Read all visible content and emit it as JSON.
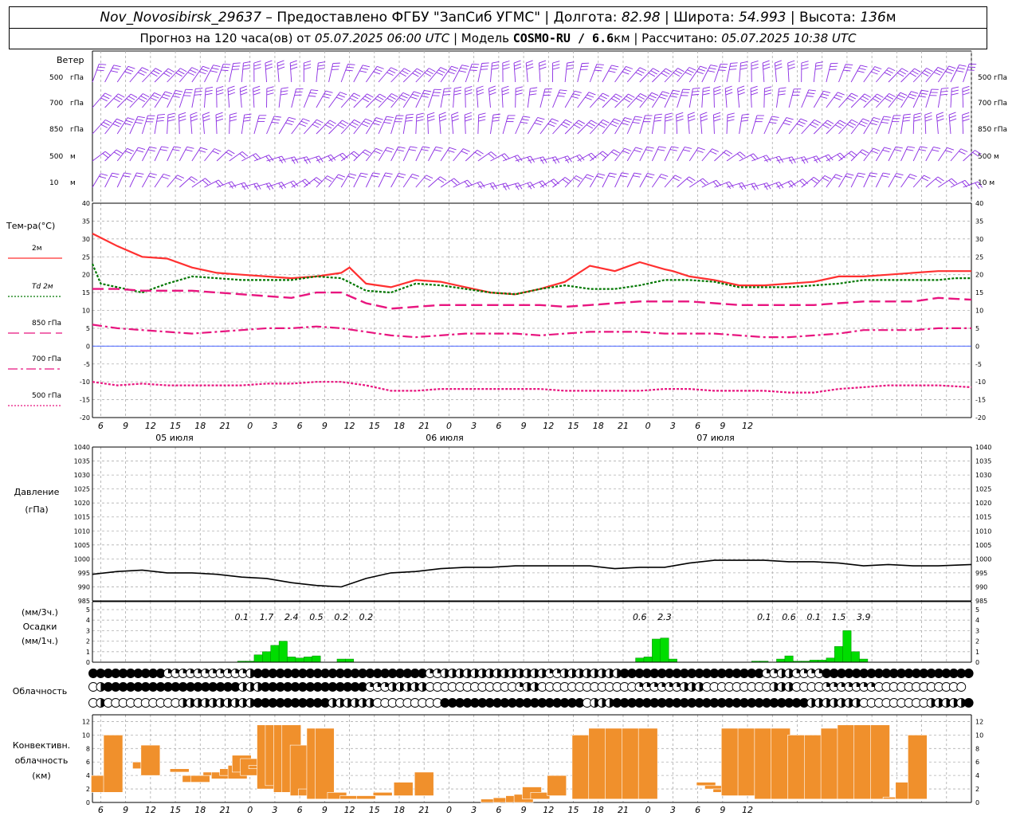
{
  "header": {
    "station": "Nov_Novosibirsk_29637",
    "dash": "–",
    "provider": "Предоставлено ФГБУ \"ЗапСиб УГМС\"",
    "sep": "|",
    "lon_label": "Долгота:",
    "lon": "82.98",
    "lat_label": "Широта:",
    "lat": "54.993",
    "alt_label": "Высота:",
    "alt": "136",
    "alt_unit": "м"
  },
  "subheader": {
    "forecast_label": "Прогноз на 120 часа(ов) от",
    "forecast_time": "05.07.2025 06:00 UTC",
    "model_label": "| Модель",
    "model": "COSMO-RU / 6.6",
    "model_unit": "км",
    "calc_label": "| Рассчитано:",
    "calc_time": "05.07.2025 10:38 UTC"
  },
  "x_ticks": [
    "6",
    "9",
    "12",
    "15",
    "18",
    "21",
    "0",
    "3",
    "6",
    "9",
    "12",
    "15",
    "18",
    "21",
    "0",
    "3",
    "6",
    "9",
    "12",
    "15",
    "18",
    "21",
    "0",
    "3",
    "6",
    "9",
    "12"
  ],
  "date_labels": [
    "05 июля",
    "06 июля",
    "07 июля"
  ],
  "wind_panel": {
    "title": "Ветер",
    "levels": [
      "500 гПа",
      "700 гПа",
      "850 гПа",
      "500 м",
      "10 м"
    ],
    "barb_color": "#8a2be2"
  },
  "temp_panel": {
    "title": "Тем-ра(°C)",
    "legend": [
      {
        "label": "2м",
        "color": "#ff3030",
        "style": "solid"
      },
      {
        "label": "Td  2м",
        "color": "#007700",
        "style": "dotted"
      },
      {
        "label": "850 гПа",
        "color": "#e8157f",
        "style": "dashed"
      },
      {
        "label": "700 гПа",
        "color": "#e8157f",
        "style": "dashdot"
      },
      {
        "label": "500 гПа",
        "color": "#e8157f",
        "style": "dotted"
      }
    ],
    "y_ticks": [
      "40",
      "35",
      "30",
      "25",
      "20",
      "15",
      "10",
      "5",
      "0",
      "-5",
      "-10",
      "-15",
      "-20"
    ]
  },
  "pressure_panel": {
    "title": "Давление",
    "unit": "(гПа)",
    "y_ticks": [
      "1040",
      "1035",
      "1030",
      "1025",
      "1020",
      "1015",
      "1010",
      "1005",
      "1000",
      "995",
      "990",
      "985"
    ]
  },
  "precip_panel": {
    "unit_3h": "(мм/3ч.)",
    "title": "Осадки",
    "unit_1h": "(мм/1ч.)",
    "y_ticks": [
      "5",
      "4",
      "3",
      "2",
      "1",
      "0"
    ],
    "totals": [
      {
        "text": "0.1",
        "hour": 18
      },
      {
        "text": "1.7",
        "hour": 21
      },
      {
        "text": "2.4",
        "hour": 24
      },
      {
        "text": "0.5",
        "hour": 27
      },
      {
        "text": "0.2",
        "hour": 30
      },
      {
        "text": "0.2",
        "hour": 33
      },
      {
        "text": "0.6",
        "hour": 66
      },
      {
        "text": "2.3",
        "hour": 69
      },
      {
        "text": "0.1",
        "hour": 81
      },
      {
        "text": "0.6",
        "hour": 84
      },
      {
        "text": "0.1",
        "hour": 87
      },
      {
        "text": "1.5",
        "hour": 90
      },
      {
        "text": "3.9",
        "hour": 93
      }
    ]
  },
  "cloud_panel": {
    "title": "Облачность"
  },
  "conv_panel": {
    "title_1": "Конвективн.",
    "title_2": "облачность",
    "unit": "(км)",
    "y_ticks": [
      "12",
      "10",
      "8",
      "6",
      "4",
      "2",
      "0"
    ]
  },
  "chart_data": [
    {
      "type": "line",
      "title": "Тем-ра(°C)",
      "x_unit": "hours from 05.07.2025 06:00 UTC",
      "ylim": [
        -20,
        40
      ],
      "series": [
        {
          "name": "2м",
          "x": [
            0,
            3,
            6,
            9,
            12,
            15,
            18,
            21,
            24,
            27,
            30,
            31,
            33,
            36,
            39,
            42,
            45,
            48,
            51,
            54,
            57,
            60,
            63,
            66,
            69,
            70,
            72,
            75,
            78,
            81,
            84,
            87,
            90,
            93,
            96,
            99,
            102,
            104,
            106
          ],
          "values": [
            31.5,
            28,
            25,
            24.5,
            22,
            20.5,
            20,
            19.5,
            19,
            19.5,
            20.5,
            22,
            17.5,
            16.5,
            18.5,
            18,
            16.5,
            15,
            14.5,
            16,
            18,
            22.5,
            21,
            23.5,
            21.5,
            21,
            19.5,
            18.5,
            17,
            17,
            17.5,
            18,
            19.5,
            19.5,
            20,
            20.5,
            21,
            21,
            21
          ]
        },
        {
          "name": "Td  2м",
          "x": [
            0,
            1,
            3,
            6,
            9,
            12,
            15,
            18,
            21,
            24,
            27,
            30,
            33,
            36,
            39,
            42,
            45,
            48,
            51,
            54,
            57,
            60,
            63,
            66,
            69,
            72,
            75,
            78,
            81,
            84,
            87,
            90,
            93,
            96,
            99,
            102,
            104,
            106
          ],
          "values": [
            23,
            17.5,
            16.5,
            15,
            17.5,
            19.5,
            19,
            18.5,
            18.5,
            18.5,
            19.5,
            19,
            15.5,
            15,
            17.5,
            17,
            16,
            15,
            14.5,
            16,
            17,
            16,
            16,
            17,
            18.5,
            18.5,
            18,
            16.5,
            16.5,
            16.5,
            17,
            17.5,
            18.5,
            18.5,
            18.5,
            18.5,
            19,
            19
          ]
        },
        {
          "name": "850 гПа",
          "x": [
            0,
            3,
            6,
            9,
            12,
            15,
            18,
            21,
            24,
            27,
            30,
            33,
            36,
            39,
            42,
            45,
            48,
            51,
            54,
            57,
            60,
            63,
            66,
            69,
            72,
            75,
            78,
            81,
            84,
            87,
            90,
            93,
            96,
            99,
            102,
            106
          ],
          "values": [
            16,
            16,
            15.5,
            15.5,
            15.5,
            15,
            14.5,
            14,
            13.5,
            15,
            15,
            12,
            10.5,
            11,
            11.5,
            11.5,
            11.5,
            11.5,
            11.5,
            11,
            11.5,
            12,
            12.5,
            12.5,
            12.5,
            12,
            11.5,
            11.5,
            11.5,
            11.5,
            12,
            12.5,
            12.5,
            12.5,
            13.5,
            13
          ]
        },
        {
          "name": "700 гПа",
          "x": [
            0,
            3,
            6,
            9,
            12,
            15,
            18,
            21,
            24,
            27,
            30,
            33,
            36,
            39,
            42,
            45,
            48,
            51,
            54,
            57,
            60,
            63,
            66,
            69,
            72,
            75,
            78,
            81,
            84,
            87,
            90,
            93,
            96,
            99,
            102,
            106
          ],
          "values": [
            6,
            5,
            4.5,
            4,
            3.5,
            4,
            4.5,
            5,
            5,
            5.5,
            5,
            4,
            3,
            2.5,
            3,
            3.5,
            3.5,
            3.5,
            3,
            3.5,
            4,
            4,
            4,
            3.5,
            3.5,
            3.5,
            3,
            2.5,
            2.5,
            3,
            3.5,
            4.5,
            4.5,
            4.5,
            5,
            5
          ]
        },
        {
          "name": "500 гПа",
          "x": [
            0,
            3,
            6,
            9,
            12,
            15,
            18,
            21,
            24,
            27,
            30,
            33,
            36,
            39,
            42,
            45,
            48,
            51,
            54,
            57,
            60,
            63,
            66,
            69,
            72,
            75,
            78,
            81,
            84,
            87,
            90,
            93,
            96,
            99,
            102,
            106
          ],
          "values": [
            -10,
            -11,
            -10.5,
            -11,
            -11,
            -11,
            -11,
            -10.5,
            -10.5,
            -10,
            -10,
            -11,
            -12.5,
            -12.5,
            -12,
            -12,
            -12,
            -12,
            -12,
            -12.5,
            -12.5,
            -12.5,
            -12.5,
            -12,
            -12,
            -12.5,
            -12.5,
            -12.5,
            -13,
            -13,
            -12,
            -11.5,
            -11,
            -11,
            -11,
            -11.5
          ]
        },
        {
          "name": "0",
          "x": [
            0,
            106
          ],
          "values": [
            0,
            0
          ]
        }
      ]
    },
    {
      "type": "line",
      "title": "Давление",
      "ylim": [
        985,
        1040
      ],
      "series": [
        {
          "name": "p",
          "x": [
            0,
            3,
            6,
            9,
            12,
            15,
            18,
            21,
            24,
            27,
            30,
            33,
            36,
            39,
            42,
            45,
            48,
            51,
            54,
            57,
            60,
            63,
            66,
            69,
            72,
            75,
            78,
            81,
            84,
            87,
            90,
            93,
            96,
            99,
            102,
            106
          ],
          "values": [
            994.5,
            995.5,
            996,
            995,
            995,
            994.5,
            993.5,
            993,
            991.5,
            990.5,
            990,
            993,
            995,
            995.5,
            996.5,
            997,
            997,
            997.5,
            997.5,
            997.5,
            997.5,
            996.5,
            997,
            997,
            998.5,
            999.5,
            999.5,
            999.5,
            999,
            999,
            998.5,
            997.5,
            998,
            997.5,
            997.5,
            998
          ]
        }
      ]
    },
    {
      "type": "bar",
      "title": "Осадки",
      "ylim": [
        0,
        5
      ],
      "hours": [
        18,
        19,
        20,
        21,
        22,
        23,
        24,
        25,
        26,
        27,
        30,
        31,
        66,
        67,
        68,
        69,
        70,
        80,
        81,
        83,
        84,
        85,
        86,
        87,
        88,
        89,
        90,
        91,
        92,
        93
      ],
      "values": [
        0.1,
        0.1,
        0.7,
        1.0,
        1.6,
        2.0,
        0.5,
        0.4,
        0.5,
        0.6,
        0.3,
        0.3,
        0.4,
        0.5,
        2.2,
        2.3,
        0.3,
        0.1,
        0.1,
        0.3,
        0.6,
        0.1,
        0.1,
        0.2,
        0.2,
        0.4,
        1.5,
        3.0,
        1.0,
        0.3
      ]
    },
    {
      "type": "bar",
      "title": "Конвективн. облачность",
      "ylim": [
        0,
        13
      ],
      "bars": [
        {
          "x": 1,
          "base": 1.5,
          "top": 4.0
        },
        {
          "x": 2.5,
          "base": 1.5,
          "top": 10.0
        },
        {
          "x": 6,
          "base": 5.0,
          "top": 6.0
        },
        {
          "x": 7,
          "base": 4.0,
          "top": 8.5
        },
        {
          "x": 10.5,
          "base": 4.5,
          "top": 5.0
        },
        {
          "x": 12,
          "base": 3.0,
          "top": 4.0
        },
        {
          "x": 13,
          "base": 3.0,
          "top": 4.0
        },
        {
          "x": 14.5,
          "base": 4.0,
          "top": 4.5
        },
        {
          "x": 15.5,
          "base": 3.5,
          "top": 4.5
        },
        {
          "x": 16.5,
          "base": 4.0,
          "top": 5.0
        },
        {
          "x": 17.5,
          "base": 3.5,
          "top": 5.5
        },
        {
          "x": 18,
          "base": 4.5,
          "top": 7.0
        },
        {
          "x": 19,
          "base": 4.0,
          "top": 6.5
        },
        {
          "x": 20,
          "base": 5.0,
          "top": 5.5
        },
        {
          "x": 21,
          "base": 2.0,
          "top": 11.5
        },
        {
          "x": 22,
          "base": 2.5,
          "top": 11.5
        },
        {
          "x": 23,
          "base": 1.5,
          "top": 11.5
        },
        {
          "x": 24,
          "base": 1.5,
          "top": 11.5
        },
        {
          "x": 25,
          "base": 1.0,
          "top": 8.5
        },
        {
          "x": 26,
          "base": 1.0,
          "top": 2.0
        },
        {
          "x": 27,
          "base": 0.5,
          "top": 11.0
        },
        {
          "x": 28,
          "base": 0.5,
          "top": 11.0
        },
        {
          "x": 29.5,
          "base": 0.5,
          "top": 1.5
        },
        {
          "x": 31,
          "base": 0.5,
          "top": 1.0
        },
        {
          "x": 33,
          "base": 0.5,
          "top": 1.0
        },
        {
          "x": 35,
          "base": 1.0,
          "top": 1.5
        },
        {
          "x": 37.5,
          "base": 1.0,
          "top": 3.0
        },
        {
          "x": 40,
          "base": 1.0,
          "top": 4.5
        },
        {
          "x": 48,
          "base": 0.0,
          "top": 0.5
        },
        {
          "x": 49.5,
          "base": 0.0,
          "top": 0.7
        },
        {
          "x": 51,
          "base": 0.0,
          "top": 1.0
        },
        {
          "x": 52,
          "base": 0.0,
          "top": 1.2
        },
        {
          "x": 53,
          "base": 0.5,
          "top": 2.3
        },
        {
          "x": 54,
          "base": 0.5,
          "top": 1.5
        },
        {
          "x": 56,
          "base": 1.0,
          "top": 4.0
        },
        {
          "x": 59,
          "base": 0.5,
          "top": 10.0
        },
        {
          "x": 61,
          "base": 0.5,
          "top": 11.0
        },
        {
          "x": 63,
          "base": 0.5,
          "top": 11.0
        },
        {
          "x": 65,
          "base": 0.5,
          "top": 11.0
        },
        {
          "x": 67,
          "base": 0.5,
          "top": 11.0
        },
        {
          "x": 74,
          "base": 2.5,
          "top": 3.0
        },
        {
          "x": 75,
          "base": 2.0,
          "top": 2.5
        },
        {
          "x": 76,
          "base": 1.5,
          "top": 2.0
        },
        {
          "x": 77,
          "base": 1.0,
          "top": 11.0
        },
        {
          "x": 79,
          "base": 1.0,
          "top": 11.0
        },
        {
          "x": 81,
          "base": 0.5,
          "top": 11.0
        },
        {
          "x": 83,
          "base": 0.5,
          "top": 11.0
        },
        {
          "x": 85,
          "base": 0.5,
          "top": 10.0
        },
        {
          "x": 87,
          "base": 0.5,
          "top": 10.0
        },
        {
          "x": 89,
          "base": 0.5,
          "top": 11.0
        },
        {
          "x": 91,
          "base": 0.5,
          "top": 11.5
        },
        {
          "x": 93,
          "base": 0.5,
          "top": 11.5
        },
        {
          "x": 95,
          "base": 0.5,
          "top": 11.5
        },
        {
          "x": 96.5,
          "base": 0.5,
          "top": 0.8
        },
        {
          "x": 98,
          "base": 0.5,
          "top": 3.0
        },
        {
          "x": 99.5,
          "base": 0.5,
          "top": 10.0
        }
      ]
    },
    {
      "type": "table",
      "title": "Облачность",
      "rows": [
        "ffffffffffqqqqqqqqqqqhfffffffffffffffffffffffqqhhhhhhhhhhhhhhqqhhhhhhhhfffffffffffffffffffqqhhqqqqffffffffffffffffffff",
        "ohffffffffffffffffffhhhffffffffffffffqqqhhhhhooooooooooooqhhoooooooooooooqqqqqqhhhooooooooohhhooooqqqqqqqoooooooooooo",
        "ohoooooooooohhhhhhhhhhffffffffffhhhhhhooooooooofffffffffffffffffffohhhffffffffffffffffffffffffffhhhhhhhooooooooohhhhhf"
      ]
    }
  ]
}
